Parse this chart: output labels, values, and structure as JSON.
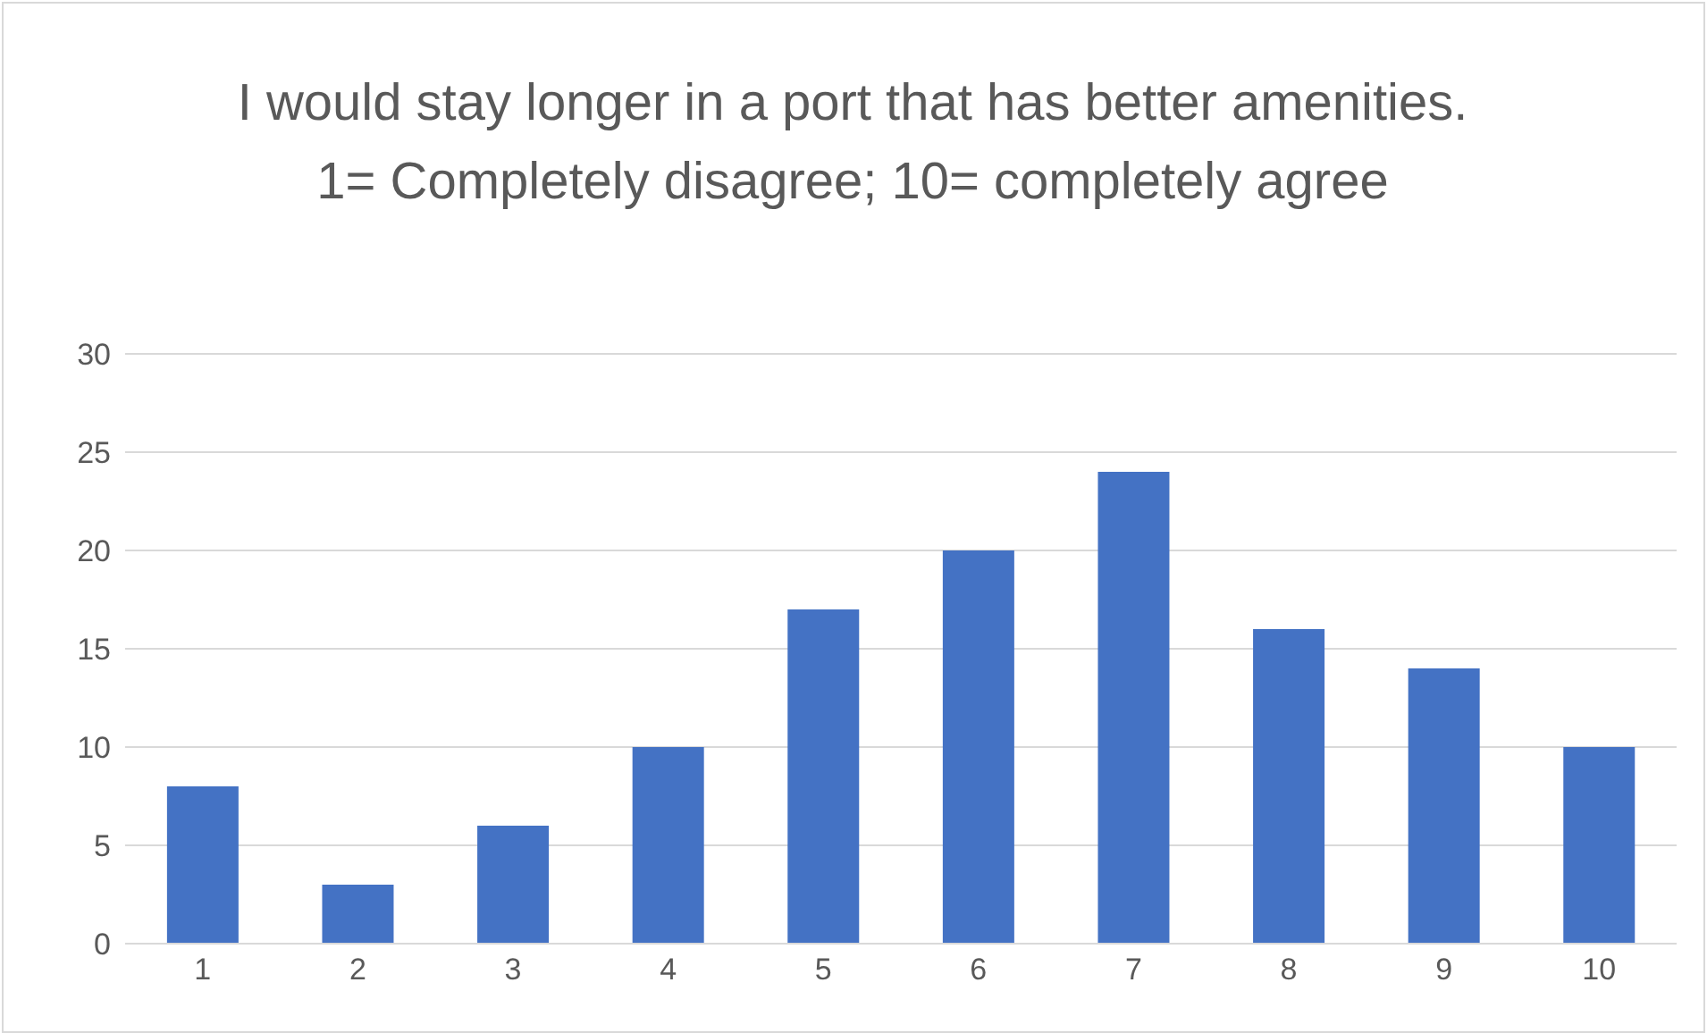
{
  "chart_data": {
    "type": "bar",
    "title": "I would stay longer in a port that has better amenities. 1= Completely disagree; 10= completely agree",
    "categories": [
      "1",
      "2",
      "3",
      "4",
      "5",
      "6",
      "7",
      "8",
      "9",
      "10"
    ],
    "values": [
      8,
      3,
      6,
      10,
      17,
      20,
      24,
      16,
      14,
      10
    ],
    "color": "#4472c4",
    "ylim": [
      0,
      30
    ],
    "yticks": [
      0,
      5,
      10,
      15,
      20,
      25,
      30
    ],
    "grid": "y",
    "legend": false
  }
}
